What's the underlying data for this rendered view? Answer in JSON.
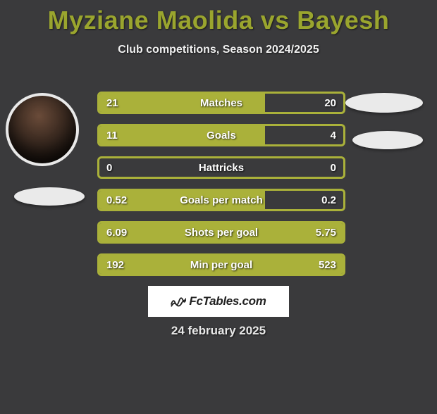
{
  "title": "Myziane Maolida vs Bayesh",
  "subtitle": "Club competitions, Season 2024/2025",
  "title_color": "#9aa52e",
  "background_color": "#3a3a3c",
  "bar_border_color": "#aab13a",
  "bar_fill_color": "#aab13a",
  "bar_empty_color": "#3a3a3c",
  "text_color": "#ffffff",
  "stats": [
    {
      "label": "Matches",
      "left_value": "21",
      "right_value": "20",
      "left_pct": 68,
      "right_pct": 0
    },
    {
      "label": "Goals",
      "left_value": "11",
      "right_value": "4",
      "left_pct": 68,
      "right_pct": 0
    },
    {
      "label": "Hattricks",
      "left_value": "0",
      "right_value": "0",
      "left_pct": 0,
      "right_pct": 0
    },
    {
      "label": "Goals per match",
      "left_value": "0.52",
      "right_value": "0.2",
      "left_pct": 68,
      "right_pct": 0
    },
    {
      "label": "Shots per goal",
      "left_value": "6.09",
      "right_value": "5.75",
      "left_pct": 52,
      "right_pct": 48
    },
    {
      "label": "Min per goal",
      "left_value": "192",
      "right_value": "523",
      "left_pct": 100,
      "right_pct": 0
    }
  ],
  "footer": {
    "brand": "FcTables.com",
    "date": "24 february 2025"
  },
  "fonts": {
    "title_size_pt": 27,
    "subtitle_size_pt": 12,
    "stat_label_size_pt": 11,
    "stat_value_size_pt": 11,
    "footer_date_size_pt": 13
  }
}
